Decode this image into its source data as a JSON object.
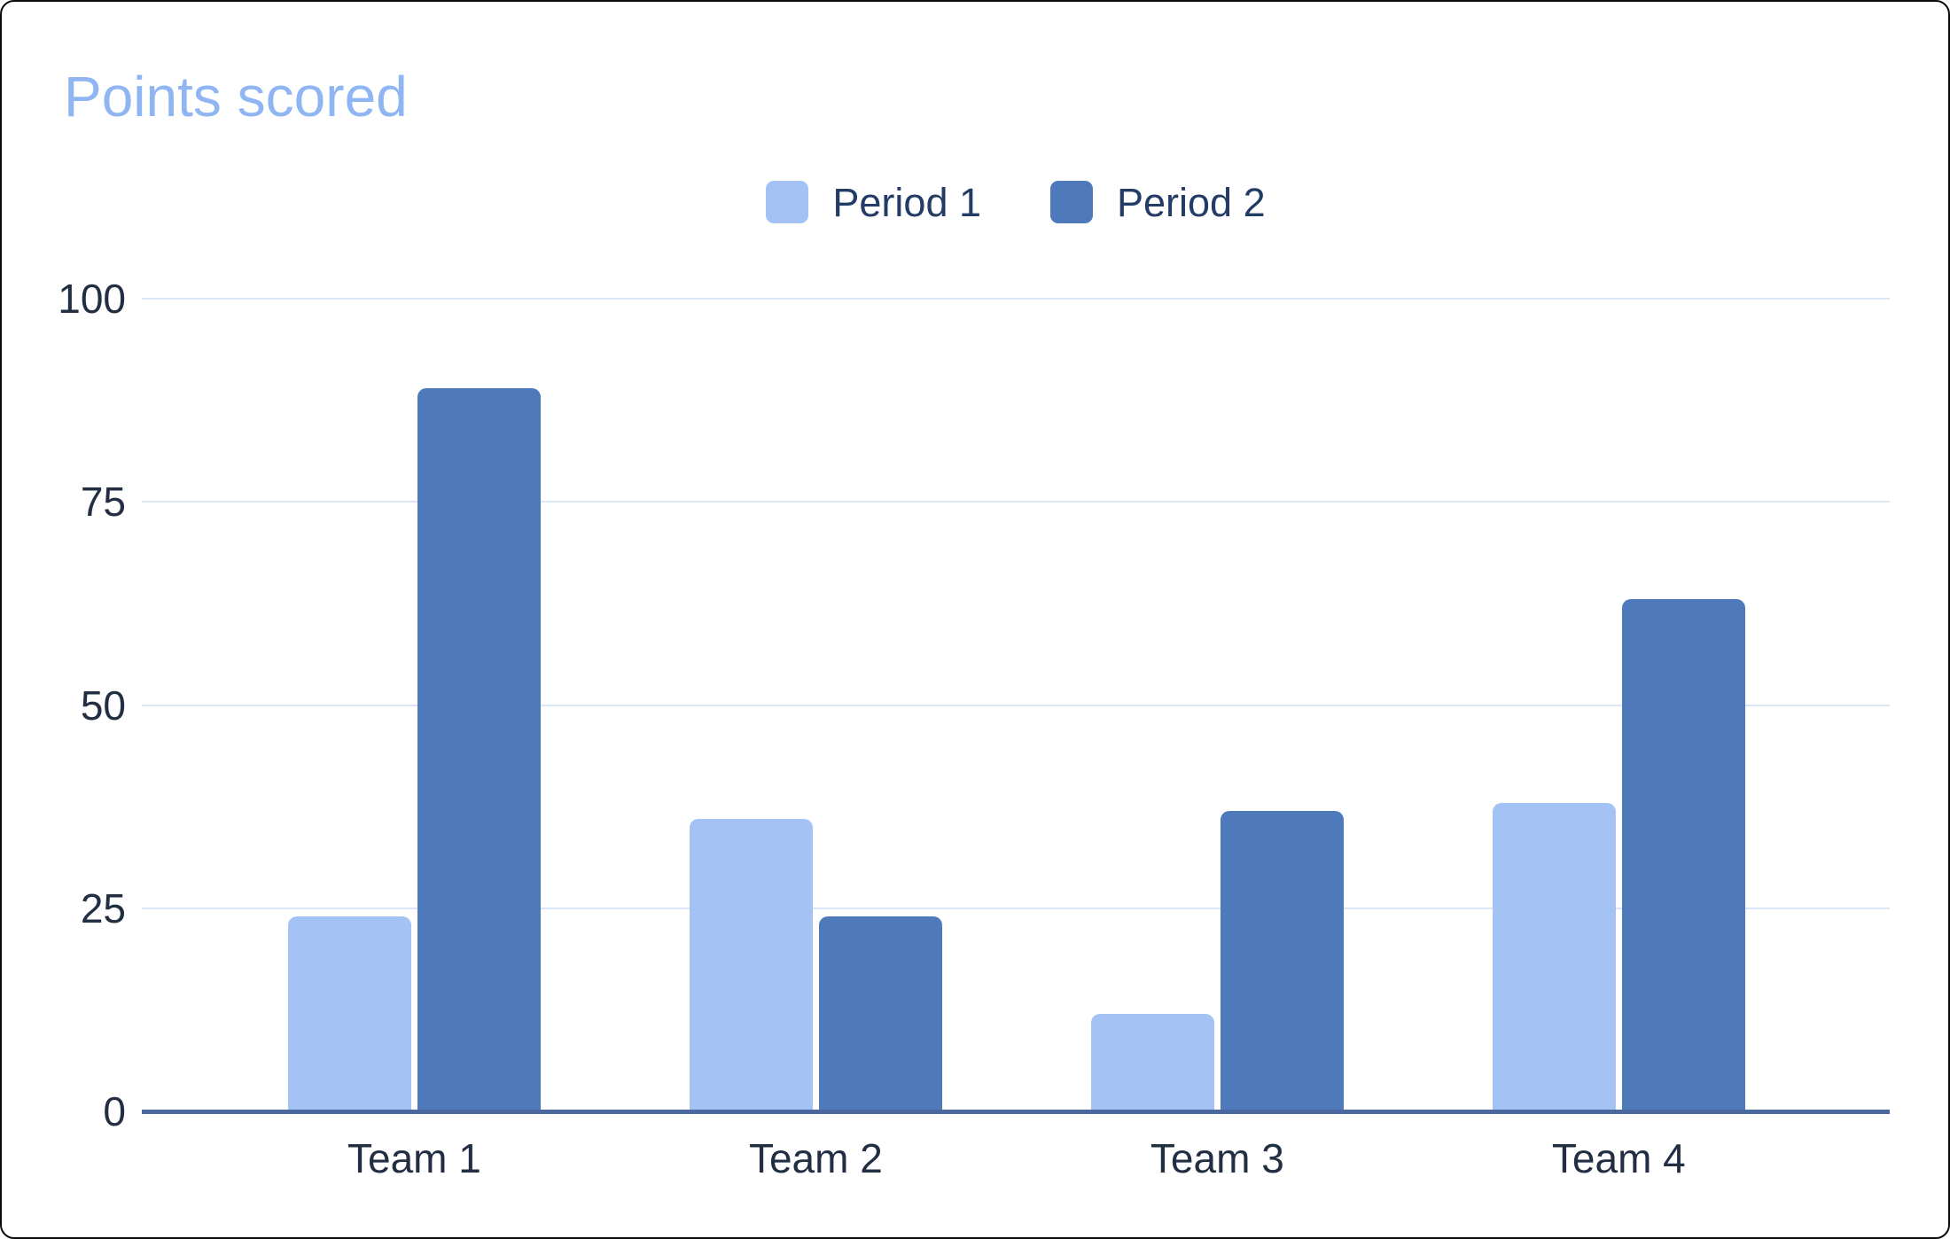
{
  "chart_data": {
    "type": "bar",
    "title": "Points scored",
    "categories": [
      "Team 1",
      "Team 2",
      "Team 3",
      "Team 4"
    ],
    "series": [
      {
        "name": "Period 1",
        "color": "#a4c2f4",
        "values": [
          24,
          36,
          12,
          38
        ]
      },
      {
        "name": "Period 2",
        "color": "#4e79bb",
        "values": [
          89,
          24,
          37,
          63
        ]
      }
    ],
    "xlabel": "",
    "ylabel": "",
    "ylim": [
      0,
      100
    ],
    "yticks": [
      0,
      25,
      50,
      75,
      100
    ],
    "grid": true,
    "legend_position": "top-center",
    "colors": {
      "title_text": "#8fb6f3",
      "axis_text": "#222f43",
      "legend_text": "#223c66",
      "gridline": "#dce6f9",
      "baseline": "#4a679f",
      "background": "#ffffff"
    }
  }
}
